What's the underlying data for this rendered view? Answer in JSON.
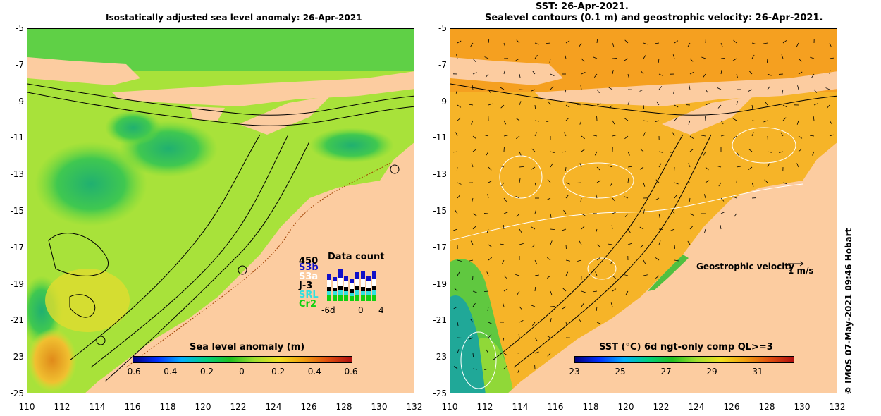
{
  "titles": {
    "left": "Isostatically adjusted sea level anomaly: 26-Apr-2021",
    "right_line1": "SST: 26-Apr-2021.",
    "right_line2": "Sealevel contours (0.1 m) and geostrophic velocity: 26-Apr-2021."
  },
  "axes": {
    "y_ticks": [
      "-5",
      "-7",
      "-9",
      "-11",
      "-13",
      "-15",
      "-17",
      "-19",
      "-21",
      "-23",
      "-25"
    ],
    "x_ticks": [
      "110",
      "112",
      "114",
      "116",
      "118",
      "120",
      "122",
      "124",
      "126",
      "128",
      "130",
      "132"
    ]
  },
  "left_colorbar": {
    "label": "Sea level anomaly (m)",
    "ticks": [
      "-0.6",
      "-0.4",
      "-0.2",
      "0",
      "0.2",
      "0.4",
      "0.6"
    ]
  },
  "right_colorbar": {
    "label": "SST (°C) 6d ngt-only comp QL>=3",
    "ticks": [
      "23",
      "25",
      "27",
      "29",
      "31"
    ]
  },
  "data_count": {
    "title": "Data count",
    "max_label": "450",
    "legend": [
      {
        "name": "S3b",
        "color": "#1010c8"
      },
      {
        "name": "S3a",
        "color": "#ffffff"
      },
      {
        "name": "J-3",
        "color": "#000000"
      },
      {
        "name": "SRL",
        "color": "#30e0e0"
      },
      {
        "name": "Cr2",
        "color": "#10d010"
      }
    ],
    "x_ticks": [
      "-6d",
      "0",
      "4"
    ]
  },
  "velocity_legend": {
    "label": "Geostrophic velocity",
    "scale": "1 m/s"
  },
  "credit": "© IMOS 07-May-2021 09:46 Hobart",
  "colors": {
    "land": "#fccca0",
    "ocean_left": "#a8e23a",
    "ocean_right": "#f6b428"
  }
}
